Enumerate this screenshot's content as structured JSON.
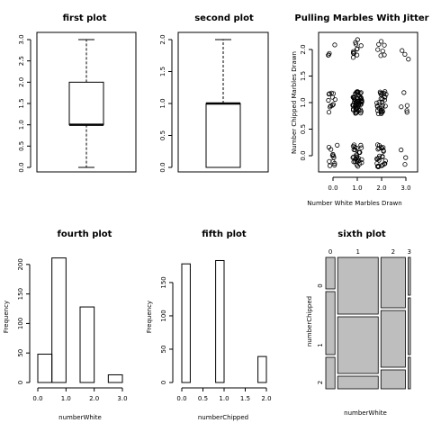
{
  "chart_data": [
    {
      "type": "box",
      "title": "first plot",
      "xlabel": "",
      "ylabel": "",
      "ylim": [
        0,
        3
      ],
      "yticks": [
        "0.0",
        "0.5",
        "1.0",
        "1.5",
        "2.0",
        "2.5",
        "3.0"
      ],
      "box": {
        "min": 0,
        "q1": 1,
        "median": 1,
        "q3": 2,
        "max": 3
      }
    },
    {
      "type": "box",
      "title": "second plot",
      "xlabel": "",
      "ylabel": "",
      "ylim": [
        0,
        2
      ],
      "yticks": [
        "0.0",
        "0.5",
        "1.0",
        "1.5",
        "2.0"
      ],
      "box": {
        "min": 0,
        "q1": 0,
        "median": 1,
        "q3": 1,
        "max": 2
      }
    },
    {
      "type": "scatter",
      "title": "Pulling Marbles With Jitter",
      "xlabel": "Number White Marbles Drawn",
      "ylabel": "Number Chipped Marbles Drawn",
      "xlim": [
        -0.3,
        3.3
      ],
      "ylim": [
        -0.25,
        2.25
      ],
      "xticks": [
        "0.0",
        "1.0",
        "2.0",
        "3.0"
      ],
      "yticks": [
        "0.0",
        "0.5",
        "1.0",
        "1.5",
        "2.0"
      ],
      "counts": [
        {
          "x": 0,
          "y": 0,
          "n": 12
        },
        {
          "x": 1,
          "y": 0,
          "n": 30
        },
        {
          "x": 2,
          "y": 0,
          "n": 25
        },
        {
          "x": 3,
          "y": 0,
          "n": 3
        },
        {
          "x": 0,
          "y": 1,
          "n": 12
        },
        {
          "x": 1,
          "y": 1,
          "n": 60
        },
        {
          "x": 2,
          "y": 1,
          "n": 30
        },
        {
          "x": 3,
          "y": 1,
          "n": 5
        },
        {
          "x": 0,
          "y": 2,
          "n": 4
        },
        {
          "x": 1,
          "y": 2,
          "n": 12
        },
        {
          "x": 2,
          "y": 2,
          "n": 7
        },
        {
          "x": 3,
          "y": 2,
          "n": 3
        }
      ]
    },
    {
      "type": "bar",
      "title": "fourth plot",
      "xlabel": "numberWhite",
      "ylabel": "Frequency",
      "bins": [
        [
          0,
          0.5
        ],
        [
          0.5,
          1
        ],
        [
          1.5,
          2
        ],
        [
          2.5,
          3
        ]
      ],
      "values": [
        48,
        211,
        128,
        13
      ],
      "xlim": [
        0,
        3
      ],
      "ylim": [
        0,
        215
      ],
      "xticks": [
        "0.0",
        "1.0",
        "2.0",
        "3.0"
      ],
      "yticks": [
        "0",
        "50",
        "100",
        "150",
        "200"
      ]
    },
    {
      "type": "bar",
      "title": "fifth plot",
      "xlabel": "numberChipped",
      "ylabel": "Frequency",
      "bins": [
        [
          0,
          0.2
        ],
        [
          0.8,
          1
        ],
        [
          1.8,
          2
        ]
      ],
      "values": [
        178,
        183,
        39
      ],
      "xlim": [
        0,
        2
      ],
      "ylim": [
        0,
        185
      ],
      "xticks": [
        "0.0",
        "0.5",
        "1.0",
        "1.5",
        "2.0"
      ],
      "yticks": [
        "0",
        "50",
        "100",
        "150"
      ]
    },
    {
      "type": "mosaic",
      "title": "sixth plot",
      "xlabel": "numberWhite",
      "ylabel": "numberChipped",
      "categories": [
        "0",
        "1",
        "2",
        "3"
      ],
      "row_categories": [
        "0",
        "1",
        "2"
      ],
      "column_fractions": [
        0.12,
        0.53,
        0.32,
        0.03
      ],
      "cell_fractions": [
        [
          0.25,
          0.5,
          0.25
        ],
        [
          0.45,
          0.45,
          0.1
        ],
        [
          0.4,
          0.45,
          0.15
        ],
        [
          0.3,
          0.45,
          0.25
        ]
      ]
    }
  ]
}
